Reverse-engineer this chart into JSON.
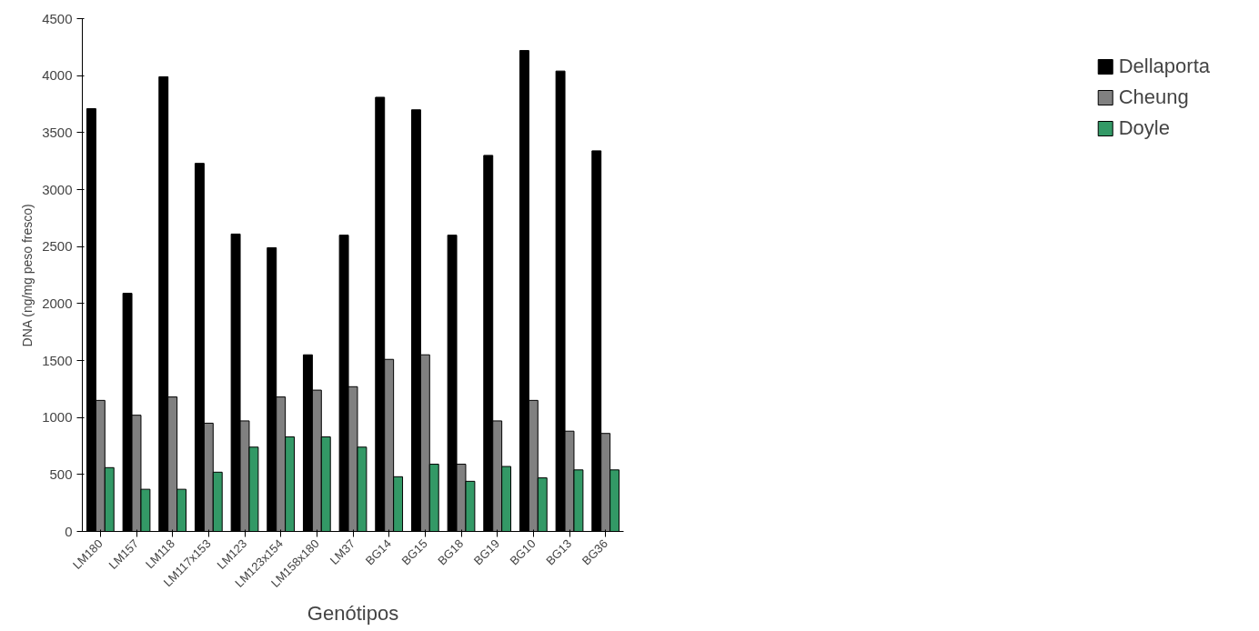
{
  "chart_data": {
    "type": "bar",
    "xlabel": "Genótipos",
    "ylabel": "DNA (ng/mg peso fresco)",
    "categories": [
      "LM180",
      "LM157",
      "LM118",
      "LM117x153",
      "LM123",
      "LM123x154",
      "LM158x180",
      "LM37",
      "BG14",
      "BG15",
      "BG18",
      "BG19",
      "BG10",
      "BG13",
      "BG36"
    ],
    "series": [
      {
        "name": "Dellaporta",
        "color": "#000000",
        "values": [
          3710,
          2090,
          3990,
          3230,
          2610,
          2490,
          1550,
          2600,
          3810,
          3700,
          2600,
          3300,
          4220,
          4040,
          3340
        ]
      },
      {
        "name": "Cheung",
        "color": "#808080",
        "values": [
          1150,
          1020,
          1180,
          950,
          970,
          1180,
          1240,
          1270,
          1510,
          1550,
          590,
          970,
          1150,
          880,
          860
        ]
      },
      {
        "name": "Doyle",
        "color": "#339966",
        "values": [
          560,
          370,
          370,
          520,
          740,
          830,
          830,
          740,
          480,
          590,
          440,
          570,
          470,
          540,
          540
        ]
      }
    ],
    "ylim": [
      0,
      4500
    ],
    "yticks": [
      0,
      500,
      1000,
      1500,
      2000,
      2500,
      3000,
      3500,
      4000,
      4500
    ],
    "grid": false,
    "legend": "right"
  }
}
